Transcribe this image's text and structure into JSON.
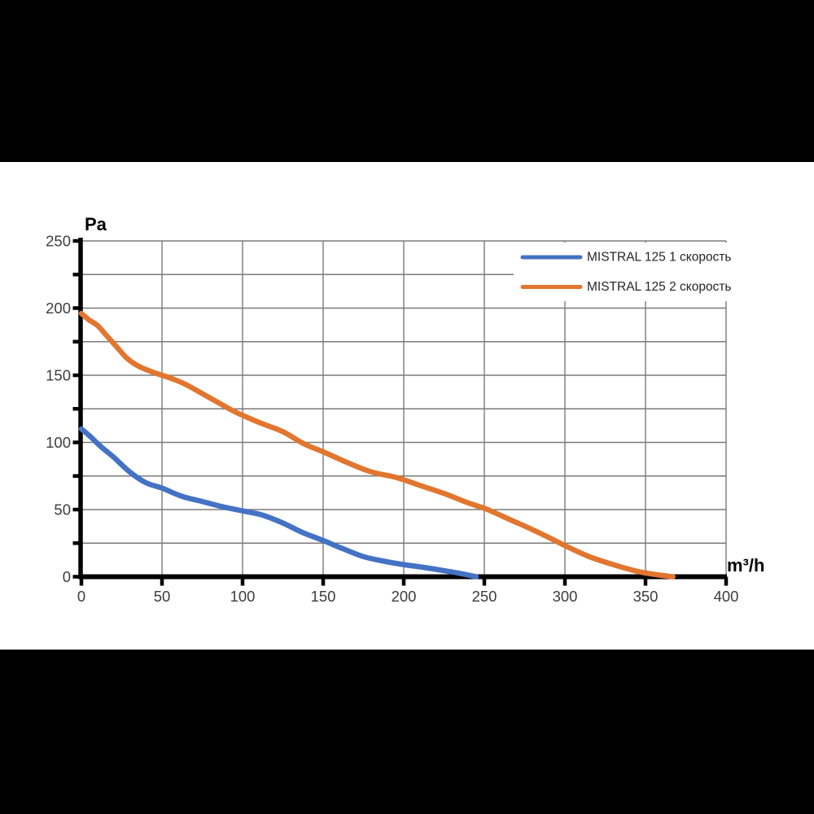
{
  "window": {
    "background": "#000000",
    "canvas_background": "#ffffff"
  },
  "chart_data": {
    "type": "line",
    "title": "",
    "xlabel": "m³/h",
    "ylabel": "Pa",
    "xlim": [
      0,
      400
    ],
    "ylim": [
      0,
      250
    ],
    "grid": {
      "visible": true,
      "x_step": 50,
      "y_step": 25,
      "color": "#7a7a7a"
    },
    "axis_color": "#000000",
    "tick_label_color": "#3d3d3d",
    "x_tick_values": [
      0,
      50,
      100,
      150,
      200,
      250,
      300,
      350,
      400
    ],
    "x_tick_labels": [
      "0",
      "50",
      "100",
      "150",
      "200",
      "250",
      "300",
      "350",
      "400"
    ],
    "y_tick_values": [
      0,
      50,
      100,
      150,
      200,
      250
    ],
    "y_tick_labels": [
      "0",
      "50",
      "100",
      "150",
      "200",
      "250"
    ],
    "y_minor_tick_values": [
      25,
      75,
      125,
      175,
      225
    ],
    "legend": {
      "position": "top-right",
      "text_color": "#262626",
      "background": "#ffffff"
    },
    "series": [
      {
        "name": "MISTRAL 125 1 скорость",
        "color": "#4472C4",
        "points": [
          [
            0,
            110
          ],
          [
            5,
            105
          ],
          [
            12,
            97
          ],
          [
            20,
            89
          ],
          [
            30,
            78
          ],
          [
            40,
            70
          ],
          [
            50,
            66
          ],
          [
            62,
            60
          ],
          [
            75,
            56
          ],
          [
            88,
            52
          ],
          [
            100,
            49
          ],
          [
            112,
            46
          ],
          [
            125,
            40
          ],
          [
            137,
            33
          ],
          [
            150,
            27
          ],
          [
            162,
            21
          ],
          [
            175,
            15
          ],
          [
            188,
            11.5
          ],
          [
            200,
            9
          ],
          [
            212,
            7
          ],
          [
            225,
            4.5
          ],
          [
            235,
            2.5
          ],
          [
            245,
            0
          ]
        ]
      },
      {
        "name": "MISTRAL 125 2 скорость",
        "color": "#E2762F",
        "points": [
          [
            0,
            196
          ],
          [
            5,
            191
          ],
          [
            10,
            187
          ],
          [
            16,
            179
          ],
          [
            22,
            171
          ],
          [
            28,
            163
          ],
          [
            35,
            157
          ],
          [
            45,
            152
          ],
          [
            55,
            148
          ],
          [
            65,
            143
          ],
          [
            80,
            133
          ],
          [
            95,
            123
          ],
          [
            110,
            115
          ],
          [
            125,
            108
          ],
          [
            138,
            99
          ],
          [
            150,
            93
          ],
          [
            165,
            85
          ],
          [
            180,
            78
          ],
          [
            195,
            74
          ],
          [
            210,
            68
          ],
          [
            225,
            62
          ],
          [
            240,
            55
          ],
          [
            252,
            50
          ],
          [
            265,
            43
          ],
          [
            280,
            35
          ],
          [
            292,
            28
          ],
          [
            302,
            22
          ],
          [
            315,
            15
          ],
          [
            330,
            9
          ],
          [
            345,
            4
          ],
          [
            357,
            1.5
          ],
          [
            367,
            0
          ]
        ]
      }
    ]
  }
}
